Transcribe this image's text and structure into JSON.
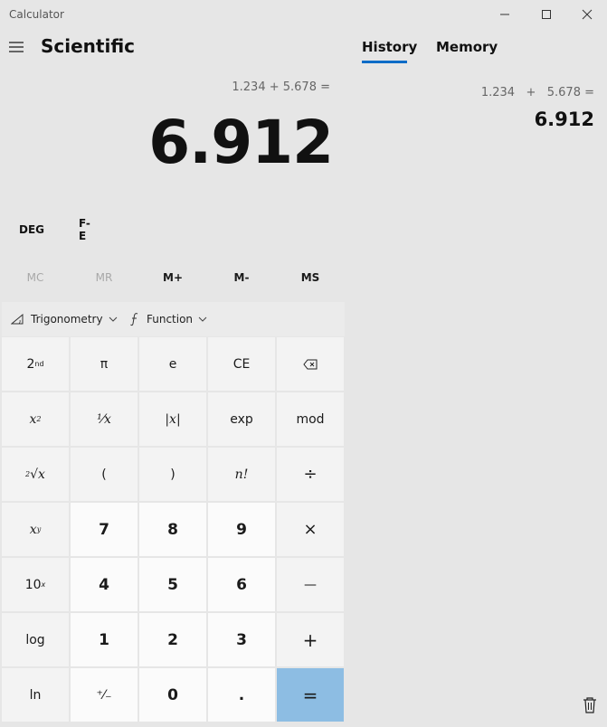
{
  "window": {
    "title": "Calculator",
    "controls": {
      "minimize": "minimize-icon",
      "maximize": "maximize-icon",
      "close": "close-icon"
    }
  },
  "header": {
    "mode": "Scientific"
  },
  "display": {
    "expression": "1.234 + 5.678 =",
    "result": "6.912"
  },
  "modes": {
    "angle": "DEG",
    "fe": "F-E"
  },
  "memory": {
    "buttons": [
      {
        "label": "MC",
        "enabled": false
      },
      {
        "label": "MR",
        "enabled": false
      },
      {
        "label": "M+",
        "enabled": true
      },
      {
        "label": "M-",
        "enabled": true
      },
      {
        "label": "MS",
        "enabled": true
      }
    ]
  },
  "dropdowns": {
    "trigonometry": "Trigonometry",
    "function": "Function"
  },
  "keys": {
    "pi": "π",
    "e": "e",
    "ce": "CE",
    "reciprocal": "¹⁄x",
    "abs": "|x|",
    "exp": "exp",
    "mod": "mod",
    "open_paren": "(",
    "close_paren": ")",
    "factorial": "n!",
    "divide": "÷",
    "seven": "7",
    "eight": "8",
    "nine": "9",
    "multiply": "×",
    "four": "4",
    "five": "5",
    "six": "6",
    "minus": "—",
    "log": "log",
    "one": "1",
    "two": "2",
    "three": "3",
    "plus": "+",
    "ln": "ln",
    "negate": "⁺⁄₋",
    "zero": "0",
    "decimal": ".",
    "equals": "="
  },
  "panel": {
    "tabs": [
      {
        "label": "History",
        "active": true
      },
      {
        "label": "Memory",
        "active": false
      }
    ],
    "history": [
      {
        "expression": "1.234   +   5.678 =",
        "result": "6.912"
      }
    ]
  },
  "colors": {
    "accent": "#0a6cc7",
    "equals_key": "#8dbde3",
    "background": "#e6e6e6"
  }
}
